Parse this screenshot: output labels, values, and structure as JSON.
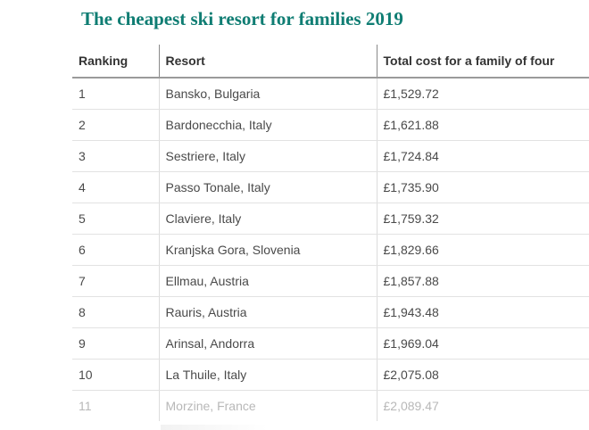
{
  "title": "The cheapest ski resort for families 2019",
  "headers": {
    "ranking": "Ranking",
    "resort": "Resort",
    "cost": "Total cost for a family of four"
  },
  "rows": [
    {
      "rank": "1",
      "resort": "Bansko, Bulgaria",
      "cost": "£1,529.72"
    },
    {
      "rank": "2",
      "resort": "Bardonecchia, Italy",
      "cost": "£1,621.88"
    },
    {
      "rank": "3",
      "resort": "Sestriere, Italy",
      "cost": "£1,724.84"
    },
    {
      "rank": "4",
      "resort": "Passo Tonale, Italy",
      "cost": "£1,735.90"
    },
    {
      "rank": "5",
      "resort": "Claviere, Italy",
      "cost": "£1,759.32"
    },
    {
      "rank": "6",
      "resort": "Kranjska Gora, Slovenia",
      "cost": "£1,829.66"
    },
    {
      "rank": "7",
      "resort": "Ellmau, Austria",
      "cost": "£1,857.88"
    },
    {
      "rank": "8",
      "resort": "Rauris, Austria",
      "cost": "£1,943.48"
    },
    {
      "rank": "9",
      "resort": "Arinsal, Andorra",
      "cost": "£1,969.04"
    },
    {
      "rank": "10",
      "resort": "La Thuile, Italy",
      "cost": "£2,075.08"
    },
    {
      "rank": "11",
      "resort": "Morzine, France",
      "cost": "£2,089.47"
    }
  ],
  "colors": {
    "title": "#0f7d73",
    "text": "#4a4a4a",
    "faded_text": "#b8b8b8"
  }
}
